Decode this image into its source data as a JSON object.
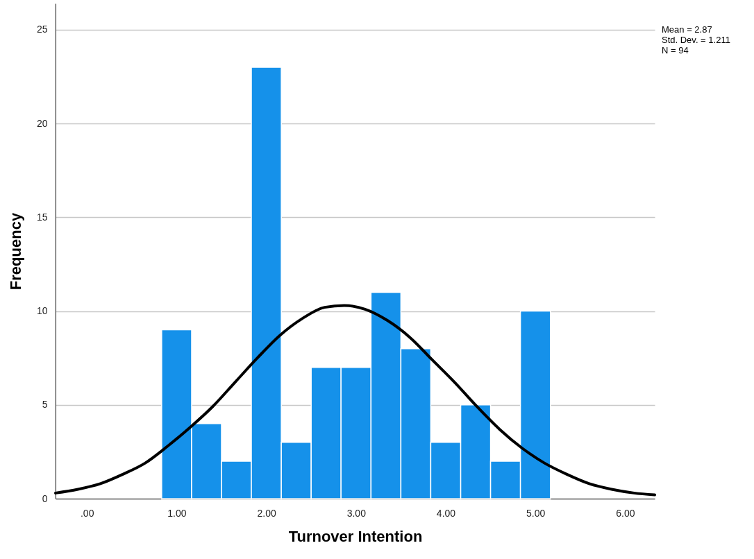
{
  "chart_data": {
    "type": "histogram",
    "xlabel": "Turnover Intention",
    "ylabel": "Frequency",
    "bins": [
      0.833,
      1.167,
      1.5,
      1.833,
      2.167,
      2.5,
      2.833,
      3.167,
      3.5,
      3.833,
      4.167,
      4.5,
      4.833,
      5.167
    ],
    "series": [
      {
        "type": "histogram",
        "color": "#1591ea",
        "values": [
          9,
          4,
          2,
          23,
          3,
          7,
          7,
          11,
          8,
          3,
          5,
          2,
          10
        ]
      },
      {
        "type": "line",
        "color": "#000000",
        "x": [
          -0.35,
          -0.1,
          0.15,
          0.4,
          0.65,
          0.9,
          1.15,
          1.4,
          1.65,
          1.9,
          2.15,
          2.4,
          2.65,
          2.87,
          3.1,
          3.35,
          3.6,
          3.85,
          4.1,
          4.35,
          4.6,
          4.85,
          5.1,
          5.35,
          5.6,
          5.85,
          6.1,
          6.33
        ],
        "values": [
          0.3,
          0.5,
          0.8,
          1.3,
          1.9,
          2.8,
          3.8,
          4.9,
          6.2,
          7.5,
          8.7,
          9.6,
          10.2,
          10.3,
          10.1,
          9.5,
          8.6,
          7.4,
          6.2,
          4.9,
          3.7,
          2.7,
          1.9,
          1.3,
          0.8,
          0.5,
          0.3,
          0.2
        ]
      }
    ],
    "xlim": [
      -0.35,
      6.33
    ],
    "xticks": [
      {
        "value": 0,
        "label": ".00"
      },
      {
        "value": 1,
        "label": "1.00"
      },
      {
        "value": 2,
        "label": "2.00"
      },
      {
        "value": 3,
        "label": "3.00"
      },
      {
        "value": 4,
        "label": "4.00"
      },
      {
        "value": 5,
        "label": "5.00"
      },
      {
        "value": 6,
        "label": "6.00"
      }
    ],
    "ylim": [
      0,
      26.4
    ],
    "yticks": [
      0,
      5,
      10,
      15,
      20,
      25
    ],
    "grid": "y",
    "annotations": [
      "Mean = 2.87",
      "Std. Dev. = 1.211",
      "N = 94"
    ]
  }
}
